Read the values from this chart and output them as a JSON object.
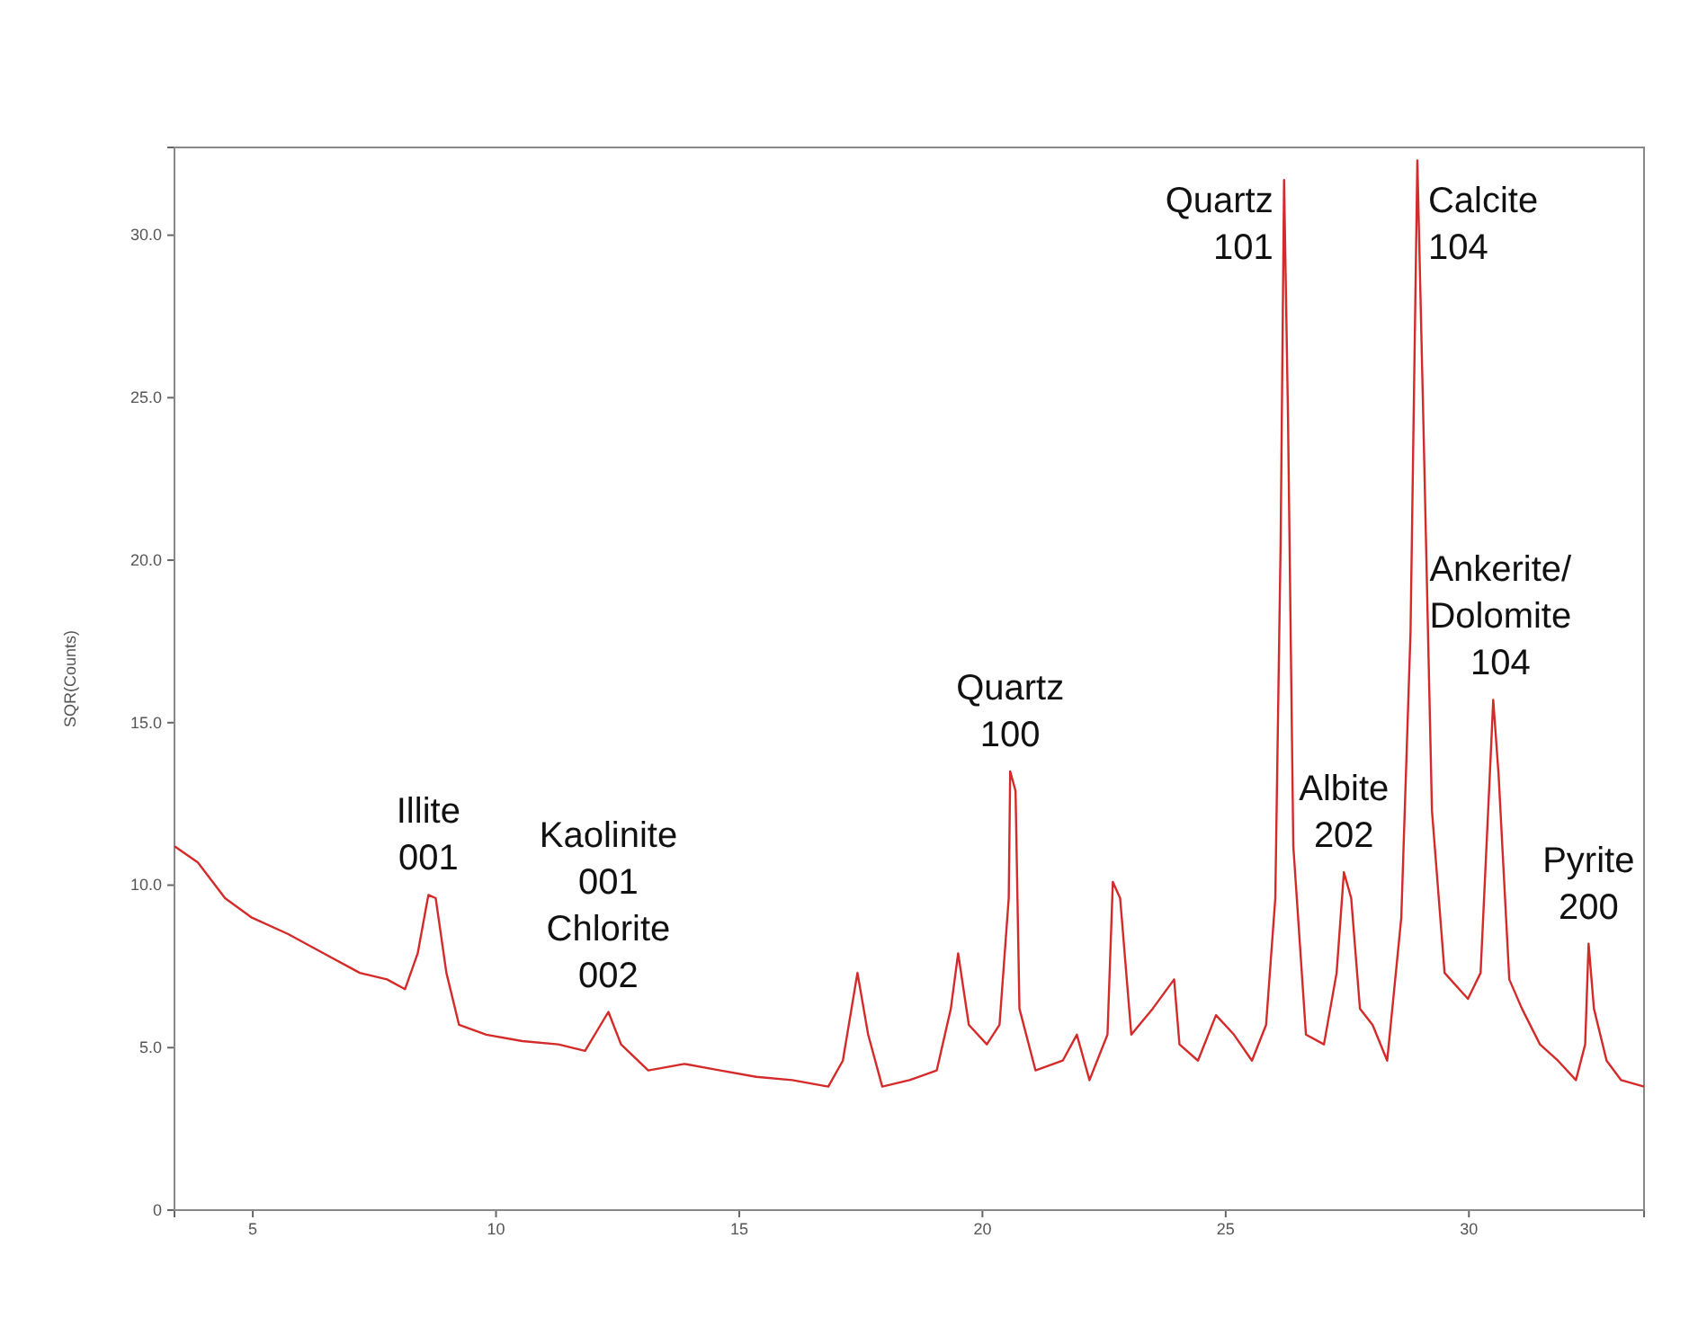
{
  "chart_data": {
    "type": "line",
    "ylabel": "SQR(Counts)",
    "xlim": [
      3.39,
      33.6
    ],
    "ylim": [
      0,
      32.7
    ],
    "xticks": [
      5,
      10,
      15,
      20,
      25,
      30
    ],
    "yticks": [
      0,
      {
        "value": 5,
        "label": "5.0"
      },
      {
        "value": 10,
        "label": "10.0"
      },
      {
        "value": 15,
        "label": "15.0"
      },
      {
        "value": 20,
        "label": "20.0"
      },
      {
        "value": 25,
        "label": "25.0"
      },
      {
        "value": 30,
        "label": "30.0"
      }
    ],
    "grid": false,
    "marker": "none",
    "line_style": "solid",
    "x": [
      3.39,
      3.87,
      4.43,
      4.98,
      5.72,
      6.46,
      7.2,
      7.76,
      8.13,
      8.39,
      8.61,
      8.76,
      8.98,
      9.24,
      9.8,
      10.54,
      11.28,
      11.83,
      12.31,
      12.57,
      13.13,
      13.87,
      14.61,
      15.35,
      16.09,
      16.83,
      17.13,
      17.43,
      17.65,
      17.94,
      18.5,
      19.06,
      19.35,
      19.5,
      19.72,
      20.09,
      20.35,
      20.54,
      20.57,
      20.68,
      20.76,
      21.09,
      21.65,
      21.94,
      22.2,
      22.57,
      22.68,
      22.83,
      23.06,
      23.5,
      23.94,
      24.05,
      24.43,
      24.8,
      25.17,
      25.54,
      25.83,
      26.02,
      26.13,
      26.2,
      26.28,
      26.39,
      26.65,
      27.02,
      27.28,
      27.43,
      27.58,
      27.76,
      28.02,
      28.32,
      28.61,
      28.8,
      28.94,
      29.06,
      29.24,
      29.5,
      29.98,
      30.24,
      30.43,
      30.5,
      30.61,
      30.83,
      31.09,
      31.46,
      31.83,
      32.2,
      32.39,
      32.46,
      32.57,
      32.83,
      33.13,
      33.6
    ],
    "series": [
      {
        "color": "#d42a2a",
        "values": [
          11.2,
          10.7,
          9.6,
          9.0,
          8.5,
          7.9,
          7.3,
          7.1,
          6.8,
          7.9,
          9.7,
          9.6,
          7.3,
          5.7,
          5.4,
          5.2,
          5.1,
          4.9,
          6.1,
          5.1,
          4.3,
          4.5,
          4.3,
          4.1,
          4.0,
          3.8,
          4.6,
          7.3,
          5.4,
          3.8,
          4.0,
          4.3,
          6.2,
          7.9,
          5.7,
          5.1,
          5.7,
          9.6,
          13.5,
          12.9,
          6.2,
          4.3,
          4.6,
          5.4,
          4.0,
          5.4,
          10.1,
          9.6,
          5.4,
          6.2,
          7.1,
          5.1,
          4.6,
          6.0,
          5.4,
          4.6,
          5.7,
          9.6,
          20.6,
          31.7,
          24.5,
          11.2,
          5.4,
          5.1,
          7.3,
          10.4,
          9.6,
          6.2,
          5.7,
          4.6,
          9.0,
          17.8,
          32.3,
          24.5,
          12.3,
          7.3,
          6.5,
          7.3,
          13.4,
          15.7,
          13.4,
          7.1,
          6.2,
          5.1,
          4.6,
          4.0,
          5.1,
          8.2,
          6.2,
          4.6,
          4.0,
          3.8
        ]
      }
    ],
    "annotations": [
      {
        "text": "Illite\n001",
        "x": 8.61,
        "y": 9.7
      },
      {
        "text": "Kaolinite\n001\nChlorite\n002",
        "x": 12.31,
        "y": 6.1
      },
      {
        "text": "Quartz\n100",
        "x": 20.57,
        "y": 13.5
      },
      {
        "text": "Quartz\n101",
        "x": 26.2,
        "y": 31.7
      },
      {
        "text": "Calcite\n104",
        "x": 28.94,
        "y": 32.3
      },
      {
        "text": "Albite\n202",
        "x": 27.43,
        "y": 10.4
      },
      {
        "text": "Ankerite/\nDolomite\n104",
        "x": 30.5,
        "y": 15.7
      },
      {
        "text": "Pyrite\n200",
        "x": 32.46,
        "y": 8.2
      }
    ]
  }
}
